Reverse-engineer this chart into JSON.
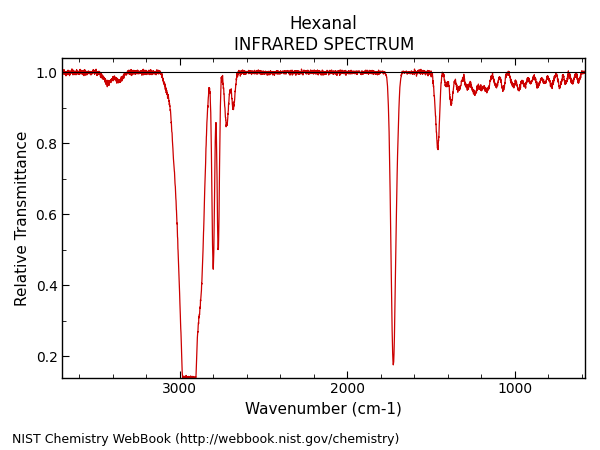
{
  "title1": "Hexanal",
  "title2": "INFRARED SPECTRUM",
  "xlabel": "Wavenumber (cm-1)",
  "ylabel": "Relative Transmittance",
  "footer": "NIST Chemistry WebBook (http://webbook.nist.gov/chemistry)",
  "xlim": [
    3700,
    580
  ],
  "ylim": [
    0.14,
    1.04
  ],
  "xticks": [
    3000,
    2000,
    1000
  ],
  "yticks": [
    0.2,
    0.4,
    0.6,
    0.8,
    1.0
  ],
  "line_color": "#cc0000",
  "bg_color": "#ffffff"
}
